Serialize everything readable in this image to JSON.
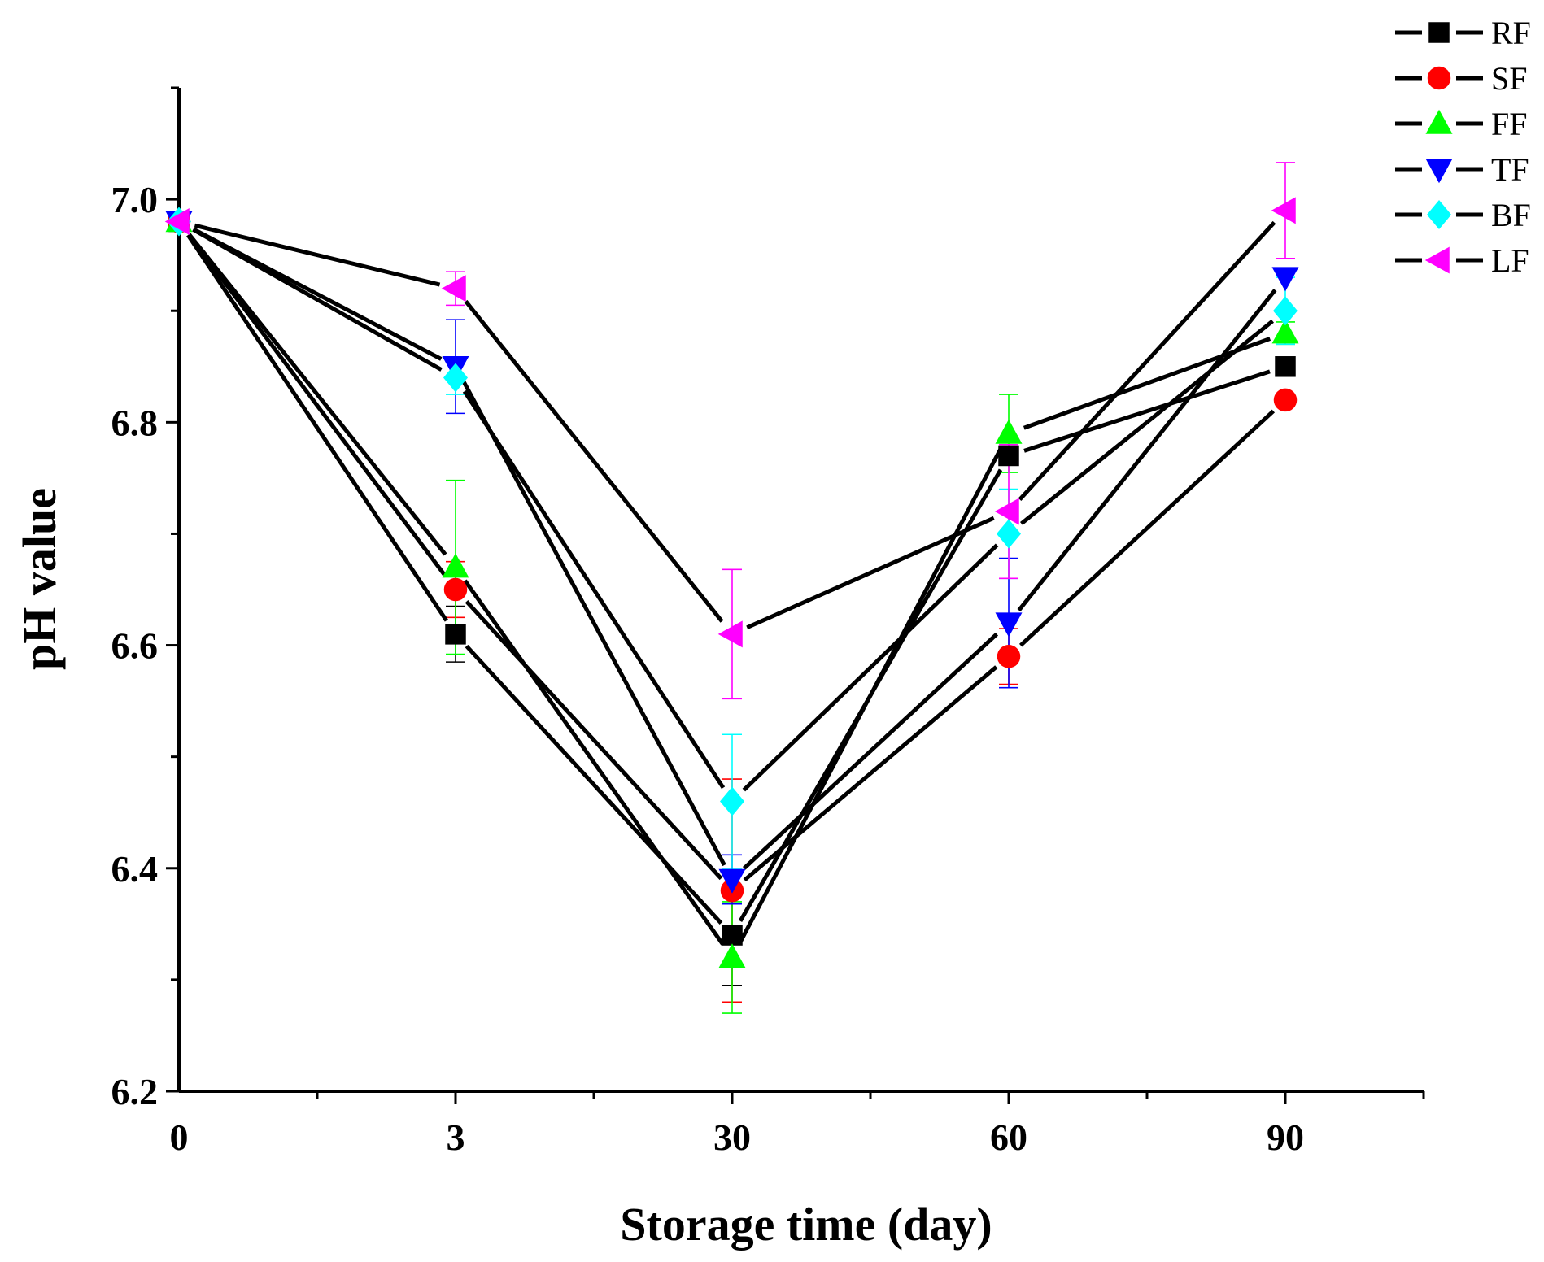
{
  "chart_data": {
    "type": "line",
    "title": "",
    "xlabel": "Storage time (day)",
    "ylabel": "pH value",
    "categories": [
      "0",
      "3",
      "30",
      "60",
      "90"
    ],
    "x_axis_extra_steps": 0.5,
    "ylim": [
      6.2,
      7.1
    ],
    "yticks": [
      6.2,
      6.4,
      6.6,
      6.8,
      7.0
    ],
    "ytick_labels": [
      "6.2",
      "6.4",
      "6.6",
      "6.8",
      "7.0"
    ],
    "grid": false,
    "legend_position": "top-right",
    "series": [
      {
        "name": "RF",
        "color": "#000000",
        "marker": "square",
        "values": [
          6.98,
          6.61,
          6.34,
          6.77,
          6.85
        ],
        "errors": [
          0.0,
          0.025,
          0.045,
          0.0,
          0.0
        ]
      },
      {
        "name": "SF",
        "color": "#ff0000",
        "marker": "circle",
        "values": [
          6.98,
          6.65,
          6.38,
          6.59,
          6.82
        ],
        "errors": [
          0.0,
          0.025,
          0.1,
          0.025,
          0.0
        ]
      },
      {
        "name": "FF",
        "color": "#00ff00",
        "marker": "triangle-up",
        "values": [
          6.98,
          6.67,
          6.32,
          6.79,
          6.88
        ],
        "errors": [
          0.0,
          0.078,
          0.05,
          0.035,
          0.01
        ]
      },
      {
        "name": "TF",
        "color": "#0000ff",
        "marker": "triangle-down",
        "values": [
          6.98,
          6.85,
          6.39,
          6.62,
          6.93
        ],
        "errors": [
          0.0,
          0.042,
          0.022,
          0.058,
          0.0
        ]
      },
      {
        "name": "BF",
        "color": "#00ffff",
        "marker": "diamond",
        "values": [
          6.98,
          6.84,
          6.46,
          6.7,
          6.9
        ],
        "errors": [
          0.0,
          0.015,
          0.06,
          0.04,
          0.03
        ]
      },
      {
        "name": "LF",
        "color": "#ff00ff",
        "marker": "triangle-left",
        "values": [
          6.98,
          6.92,
          6.61,
          6.72,
          6.99
        ],
        "errors": [
          0.0,
          0.015,
          0.058,
          0.06,
          0.043
        ]
      }
    ]
  }
}
